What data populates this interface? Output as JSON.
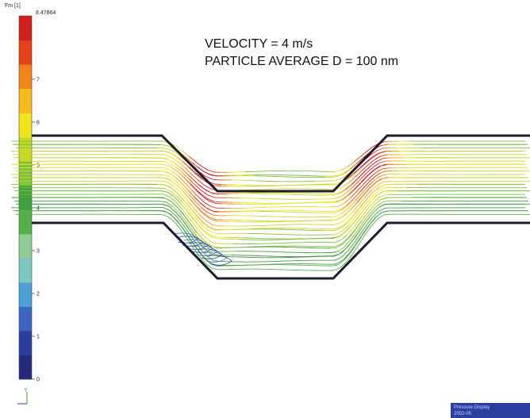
{
  "annotations": {
    "velocity": "VELOCITY = 4 m/s",
    "particle": "PARTICLE AVERAGE D = 100 nm"
  },
  "legend": {
    "title": "Fm [1]",
    "max_label": "8.47864",
    "ticks": [
      "0",
      "1",
      "2",
      "3",
      "4",
      "5",
      "6",
      "7"
    ],
    "tick_values": [
      0,
      1,
      2,
      3,
      4,
      5,
      6,
      7
    ],
    "max_value": 8.47864,
    "colors": [
      "#26297a",
      "#2a3ea0",
      "#3b66c4",
      "#4f9fd8",
      "#7ec6c4",
      "#8fcf96",
      "#55b04b",
      "#3fa23c",
      "#7cc23a",
      "#c9d92a",
      "#f1e41f",
      "#f5b91c",
      "#f08419",
      "#e6421a",
      "#d41f1f"
    ]
  },
  "axis_triad": {
    "label": "Y"
  },
  "footer": {
    "line1": "Pressure Display",
    "line2": "2002-05"
  },
  "colors": {
    "wall": "#1c1c2e",
    "flow_low": "#2a3ea0",
    "flow_mid": "#55b04b",
    "flow_high": "#e6421a"
  }
}
